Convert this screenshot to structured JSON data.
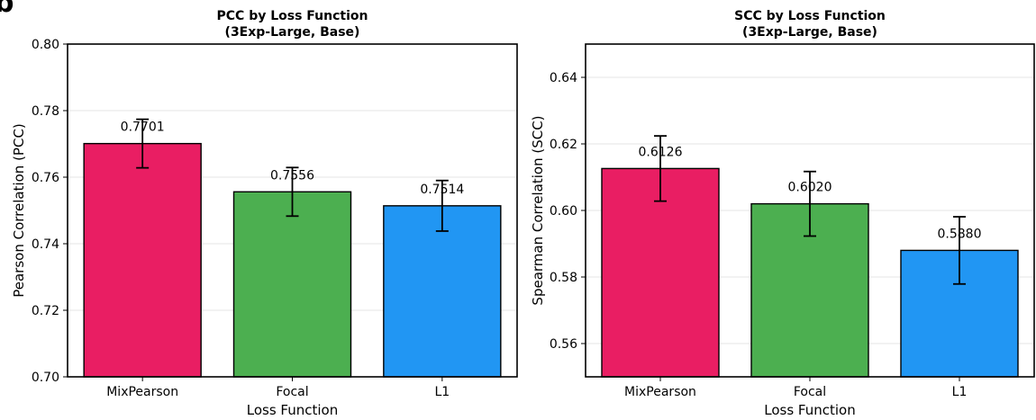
{
  "panel_label": "b",
  "chart_data": [
    {
      "type": "bar",
      "title": "PCC by Loss Function",
      "subtitle": "(3Exp-Large, Base)",
      "xlabel": "Loss Function",
      "ylabel": "Pearson Correlation (PCC)",
      "categories": [
        "MixPearson",
        "Focal",
        "L1"
      ],
      "values": [
        0.7701,
        0.7556,
        0.7514
      ],
      "errors": [
        0.0073,
        0.0073,
        0.0076
      ],
      "value_labels": [
        "0.7701",
        "0.7556",
        "0.7514"
      ],
      "colors": [
        "#e91e63",
        "#4caf50",
        "#2196f3"
      ],
      "ylim": [
        0.7,
        0.8
      ],
      "yticks": [
        0.7,
        0.72,
        0.74,
        0.76,
        0.78,
        0.8
      ],
      "ytick_labels": [
        "0.70",
        "0.72",
        "0.74",
        "0.76",
        "0.78",
        "0.80"
      ],
      "grid": true
    },
    {
      "type": "bar",
      "title": "SCC by Loss Function",
      "subtitle": "(3Exp-Large, Base)",
      "xlabel": "Loss Function",
      "ylabel": "Spearman Correlation (SCC)",
      "categories": [
        "MixPearson",
        "Focal",
        "L1"
      ],
      "values": [
        0.6126,
        0.602,
        0.588
      ],
      "errors": [
        0.0098,
        0.0097,
        0.0101
      ],
      "value_labels": [
        "0.6126",
        "0.6020",
        "0.5880"
      ],
      "colors": [
        "#e91e63",
        "#4caf50",
        "#2196f3"
      ],
      "ylim": [
        0.55,
        0.65
      ],
      "yticks": [
        0.56,
        0.58,
        0.6,
        0.62,
        0.64
      ],
      "ytick_labels": [
        "0.56",
        "0.58",
        "0.60",
        "0.62",
        "0.64"
      ],
      "grid": true
    }
  ]
}
